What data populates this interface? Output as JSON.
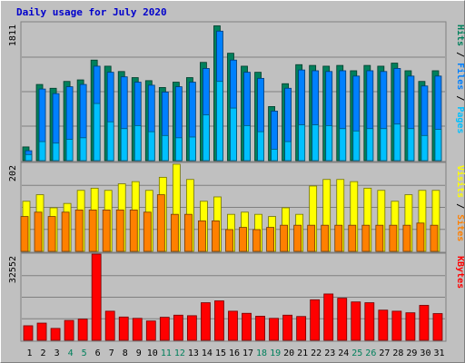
{
  "title": "Daily usage for July 2020",
  "colors": {
    "hits": "#00805c",
    "files": "#0080ff",
    "pages": "#00c0ff",
    "visits": "#ff8000",
    "sites": "#ffff00",
    "kbytes": "#ff0000",
    "panel_bg": "#c0c0c0",
    "title": "#0000cc",
    "weekend_label": "#00805c"
  },
  "chart_data": [
    {
      "type": "bar",
      "name": "hits-files-pages",
      "max_label": "1811",
      "ylim": [
        0,
        1811
      ],
      "right_labels": [
        "Pages",
        "Files",
        "Hits"
      ],
      "categories": [
        "1",
        "2",
        "3",
        "4",
        "5",
        "6",
        "7",
        "8",
        "9",
        "10",
        "11",
        "12",
        "13",
        "14",
        "15",
        "16",
        "17",
        "18",
        "19",
        "20",
        "21",
        "22",
        "23",
        "24",
        "25",
        "26",
        "27",
        "28",
        "29",
        "30",
        "31"
      ],
      "series": [
        {
          "name": "Hits",
          "values": [
            180,
            1000,
            950,
            1040,
            1060,
            1320,
            1240,
            1170,
            1090,
            1050,
            960,
            1030,
            1090,
            1290,
            1770,
            1410,
            1240,
            1160,
            710,
            1010,
            1260,
            1250,
            1240,
            1250,
            1180,
            1250,
            1240,
            1280,
            1180,
            1040,
            1180
          ]
        },
        {
          "name": "Files",
          "values": [
            130,
            940,
            880,
            970,
            1000,
            1240,
            1160,
            1100,
            1030,
            990,
            900,
            970,
            1030,
            1210,
            1700,
            1320,
            1160,
            1080,
            650,
            950,
            1190,
            1180,
            1170,
            1180,
            1110,
            1180,
            1170,
            1210,
            1110,
            980,
            1110
          ]
        },
        {
          "name": "Pages",
          "values": [
            80,
            250,
            230,
            280,
            300,
            750,
            510,
            420,
            460,
            380,
            330,
            300,
            310,
            600,
            1040,
            690,
            460,
            380,
            150,
            250,
            470,
            470,
            460,
            420,
            390,
            420,
            420,
            480,
            420,
            330,
            410
          ]
        }
      ]
    },
    {
      "type": "bar",
      "name": "visits-sites",
      "max_label": "202",
      "ylim": [
        0,
        202
      ],
      "right_labels": [
        "Sites",
        "Visits"
      ],
      "categories": [
        "1",
        "2",
        "3",
        "4",
        "5",
        "6",
        "7",
        "8",
        "9",
        "10",
        "11",
        "12",
        "13",
        "14",
        "15",
        "16",
        "17",
        "18",
        "19",
        "20",
        "21",
        "22",
        "23",
        "24",
        "25",
        "26",
        "27",
        "28",
        "29",
        "30",
        "31"
      ],
      "series": [
        {
          "name": "Visits",
          "values": [
            115,
            130,
            100,
            110,
            140,
            145,
            140,
            155,
            160,
            140,
            170,
            200,
            165,
            115,
            125,
            85,
            90,
            85,
            80,
            100,
            85,
            150,
            165,
            165,
            160,
            145,
            140,
            115,
            130,
            140,
            140
          ]
        },
        {
          "name": "Sites",
          "values": [
            80,
            90,
            80,
            90,
            95,
            95,
            95,
            95,
            95,
            90,
            130,
            85,
            85,
            70,
            70,
            50,
            55,
            50,
            55,
            60,
            60,
            60,
            60,
            60,
            60,
            60,
            60,
            60,
            60,
            65,
            60
          ]
        }
      ]
    },
    {
      "type": "bar",
      "name": "kbytes",
      "max_label": "32552",
      "ylim": [
        0,
        32552
      ],
      "right_labels": [
        "KBytes"
      ],
      "categories": [
        "1",
        "2",
        "3",
        "4",
        "5",
        "6",
        "7",
        "8",
        "9",
        "10",
        "11",
        "12",
        "13",
        "14",
        "15",
        "16",
        "17",
        "18",
        "19",
        "20",
        "21",
        "22",
        "23",
        "24",
        "25",
        "26",
        "27",
        "28",
        "29",
        "30",
        "31"
      ],
      "series": [
        {
          "name": "KBytes",
          "values": [
            5500,
            6500,
            4500,
            7500,
            8000,
            32552,
            11000,
            8800,
            8300,
            7300,
            8700,
            9500,
            9300,
            14200,
            14900,
            11000,
            10200,
            9100,
            8300,
            9500,
            9000,
            15300,
            17500,
            15900,
            14500,
            14200,
            11400,
            11000,
            10400,
            13200,
            10100
          ]
        }
      ]
    }
  ],
  "x_labels": [
    "1",
    "2",
    "3",
    "4",
    "5",
    "6",
    "7",
    "8",
    "9",
    "10",
    "11",
    "12",
    "13",
    "14",
    "15",
    "16",
    "17",
    "18",
    "19",
    "20",
    "21",
    "22",
    "23",
    "24",
    "25",
    "26",
    "27",
    "28",
    "29",
    "30",
    "31"
  ],
  "weekend_days": [
    "4",
    "5",
    "11",
    "12",
    "18",
    "19",
    "25",
    "26"
  ]
}
